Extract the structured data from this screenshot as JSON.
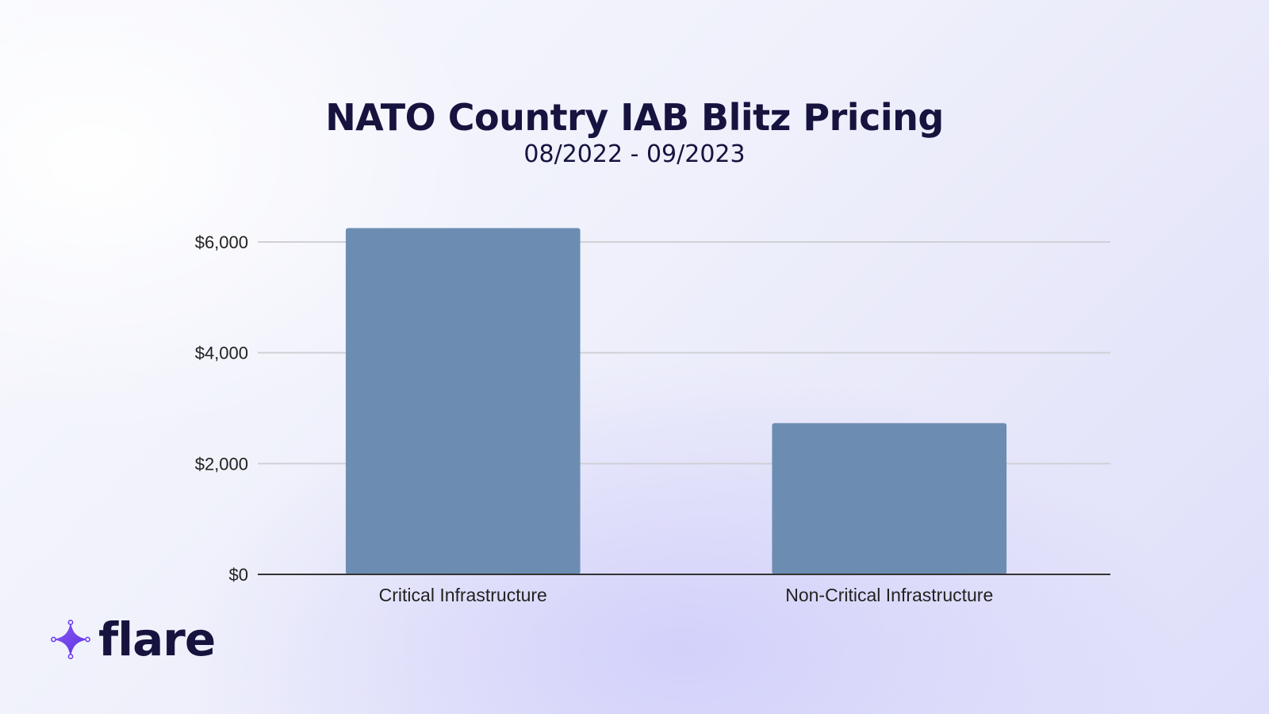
{
  "brand": {
    "name": "flare",
    "icon": "sparkle-icon",
    "accent_color": "#6b3df5"
  },
  "colors": {
    "bar": "#6c8db1",
    "title": "#16133f",
    "gridline": "#d0d0d6",
    "baseline": "#333333"
  },
  "chart_data": {
    "type": "bar",
    "title": "NATO Country IAB Blitz Pricing",
    "subtitle": "08/2022 - 09/2023",
    "categories": [
      "Critical Infrastructure",
      "Non-Critical Infrastructure"
    ],
    "values": [
      6250,
      2730
    ],
    "xlabel": "",
    "ylabel": "",
    "ylim": [
      0,
      6000
    ],
    "yticks": [
      0,
      2000,
      4000,
      6000
    ],
    "ytick_labels": [
      "$0",
      "$2,000",
      "$4,000",
      "$6,000"
    ],
    "grid": true,
    "legend": "none"
  }
}
